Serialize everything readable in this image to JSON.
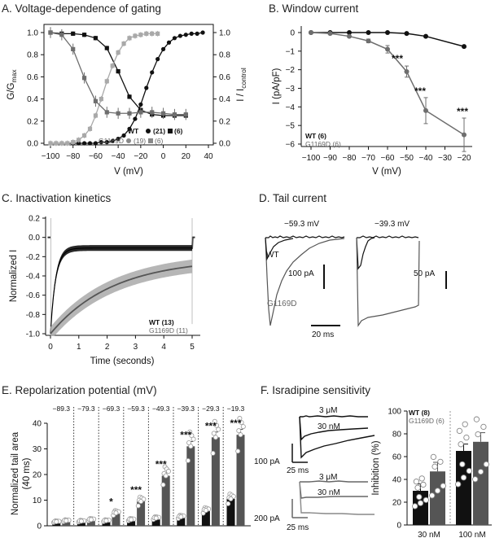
{
  "colors": {
    "wt": "#111111",
    "mut": "#6e6e6e",
    "mut_light": "#a9a9a9",
    "mut_fill": "#8a8a8a"
  },
  "chart_data": [
    {
      "id": "A",
      "type": "line",
      "title": "A. Voltage-dependence of gating",
      "xlabel": "V (mV)",
      "ylabel": "G/G",
      "ylabel_sub": "max",
      "ylabel_right": "I / I",
      "ylabel_right_sub": "control",
      "xlim": [
        -100,
        40
      ],
      "ylim": [
        0,
        1.05
      ],
      "xticks": [
        -100,
        -80,
        -60,
        -40,
        -20,
        0,
        20,
        40
      ],
      "yticks": [
        0.0,
        0.2,
        0.4,
        0.6,
        0.8,
        1.0
      ],
      "ytick_labels": [
        "0.0",
        "0.2",
        "0.4",
        "0.6",
        "0.8",
        "1.0"
      ],
      "legend": [
        {
          "group": "WT",
          "items": [
            "(21)",
            "(6)"
          ]
        },
        {
          "group": "G1169D",
          "items": [
            "(19)",
            "(6)"
          ]
        }
      ],
      "series": [
        {
          "name": "WT activation",
          "x": [
            -100,
            -95,
            -90,
            -85,
            -80,
            -75,
            -70,
            -65,
            -60,
            -55,
            -50,
            -45,
            -40,
            -35,
            -30,
            -25,
            -20,
            -15,
            -10,
            -5,
            0,
            5,
            10,
            15,
            20,
            25,
            30,
            35
          ],
          "y": [
            0,
            0,
            0,
            0,
            0,
            0,
            0,
            0,
            0,
            0.01,
            0.01,
            0.02,
            0.04,
            0.07,
            0.13,
            0.22,
            0.35,
            0.5,
            0.64,
            0.76,
            0.85,
            0.91,
            0.95,
            0.97,
            0.98,
            0.99,
            0.99,
            1.0
          ]
        },
        {
          "name": "WT inactivation",
          "x": [
            -100,
            -90,
            -80,
            -70,
            -60,
            -50,
            -40,
            -30,
            -20,
            -10,
            0,
            10,
            20
          ],
          "y": [
            1.0,
            0.99,
            0.99,
            0.98,
            0.95,
            0.86,
            0.65,
            0.42,
            0.3,
            0.26,
            0.25,
            0.25,
            0.25
          ]
        },
        {
          "name": "G1169D activation",
          "x": [
            -100,
            -95,
            -90,
            -85,
            -80,
            -75,
            -70,
            -65,
            -60,
            -55,
            -50,
            -45,
            -40,
            -35,
            -30,
            -25,
            -20,
            -15,
            -10,
            -5
          ],
          "y": [
            0,
            0,
            0,
            0,
            0.01,
            0.03,
            0.07,
            0.13,
            0.25,
            0.4,
            0.56,
            0.7,
            0.82,
            0.9,
            0.95,
            0.97,
            0.98,
            0.99,
            0.99,
            0.99
          ]
        },
        {
          "name": "G1169D inactivation",
          "x": [
            -100,
            -90,
            -80,
            -70,
            -60,
            -50,
            -40,
            -30,
            -20,
            -10,
            0,
            10,
            20
          ],
          "y": [
            1.0,
            0.98,
            0.85,
            0.59,
            0.38,
            0.28,
            0.27,
            0.27,
            0.28,
            0.28,
            0.27,
            0.26,
            0.26
          ]
        }
      ]
    },
    {
      "id": "B",
      "type": "line",
      "title": "B. Window current",
      "xlabel": "V (mV)",
      "ylabel": "I (pA/pF)",
      "xlim": [
        -100,
        -20
      ],
      "ylim": [
        -6,
        0
      ],
      "xticks": [
        -100,
        -90,
        -80,
        -70,
        -60,
        -50,
        -40,
        -30,
        -20
      ],
      "yticks": [
        0,
        -1,
        -2,
        -3,
        -4,
        -5,
        -6
      ],
      "legend": [
        "WT (6)",
        "G1169D (6)"
      ],
      "annotations": [
        "***",
        "***",
        "***"
      ],
      "series": [
        {
          "name": "WT",
          "x": [
            -100,
            -90,
            -80,
            -70,
            -60,
            -50,
            -40,
            -20
          ],
          "y": [
            0,
            0,
            0,
            0,
            0,
            -0.05,
            -0.2,
            -0.75
          ]
        },
        {
          "name": "G1169D",
          "x": [
            -100,
            -90,
            -80,
            -70,
            -60,
            -50,
            -40,
            -20
          ],
          "y": [
            0,
            -0.05,
            -0.2,
            -0.45,
            -0.9,
            -2.1,
            -4.2,
            -5.5
          ],
          "err": [
            0,
            0.02,
            0.05,
            0.1,
            0.2,
            0.3,
            0.7,
            0.9
          ]
        }
      ]
    },
    {
      "id": "C",
      "type": "line",
      "title": "C. Inactivation kinetics",
      "xlabel": "Time (seconds)",
      "ylabel": "Normalized I",
      "xlim": [
        0,
        5.2
      ],
      "ylim": [
        -1.0,
        0.2
      ],
      "xticks": [
        0,
        1,
        2,
        3,
        4,
        5
      ],
      "yticks": [
        0.2,
        0.0,
        -0.2,
        -0.4,
        -0.6,
        -0.8,
        -1.0
      ],
      "ytick_labels": [
        "0.2",
        "0.0",
        "-0.2",
        "-0.4",
        "-0.6",
        "-0.8",
        "-1.0"
      ],
      "legend": [
        "WT (13)",
        "G1169D (11)"
      ],
      "series": [
        {
          "name": "WT",
          "steady": -0.11,
          "tau": 0.18
        },
        {
          "name": "G1169D",
          "steady": -0.22,
          "tau": 2.2
        }
      ]
    },
    {
      "id": "D",
      "type": "line",
      "title": "D. Tail current",
      "labels": [
        "−59.3 mV",
        "−39.3 mV",
        "WT",
        "G1169D"
      ],
      "scalebars": [
        "100 pA",
        "50 pA",
        "20 ms"
      ]
    },
    {
      "id": "E",
      "type": "bar",
      "title": "E. Repolarization potential (mV)",
      "ylabel": "Normalized tail area",
      "ylabel2": "(40 ms)",
      "ylim": [
        0,
        40
      ],
      "yticks": [
        0,
        10,
        20,
        30,
        40
      ],
      "categories": [
        "−89.3",
        "−79.3",
        "−69.3",
        "−59.3",
        "−49.3",
        "−39.3",
        "−29.3",
        "−19.3"
      ],
      "annotations": [
        "",
        "",
        "*",
        "***",
        "***",
        "***",
        "***",
        "***"
      ],
      "series": [
        {
          "name": "WT",
          "values": [
            1.6,
            1.8,
            2.0,
            2.4,
            3.0,
            3.5,
            6.0,
            10.5
          ]
        },
        {
          "name": "G1169D",
          "values": [
            2.0,
            2.4,
            5.0,
            9.5,
            19.5,
            31.0,
            34.5,
            35.5
          ]
        }
      ]
    },
    {
      "id": "F",
      "type": "bar",
      "title": "F. Isradipine sensitivity",
      "trace_labels": [
        "3 μM",
        "30 nM",
        "3 μM",
        "30 nM"
      ],
      "scalebars": [
        "100 pA",
        "25 ms",
        "200 pA",
        "25 ms"
      ],
      "ylabel": "Inhibition (%)",
      "ylim": [
        0,
        100
      ],
      "yticks": [
        0,
        20,
        40,
        60,
        80,
        100
      ],
      "categories": [
        "30 nM",
        "100 nM"
      ],
      "legend": [
        "WT (8)",
        "G1169D (6)"
      ],
      "series": [
        {
          "name": "WT",
          "values": [
            30,
            65
          ]
        },
        {
          "name": "G1169D",
          "values": [
            47,
            73
          ]
        }
      ]
    }
  ]
}
